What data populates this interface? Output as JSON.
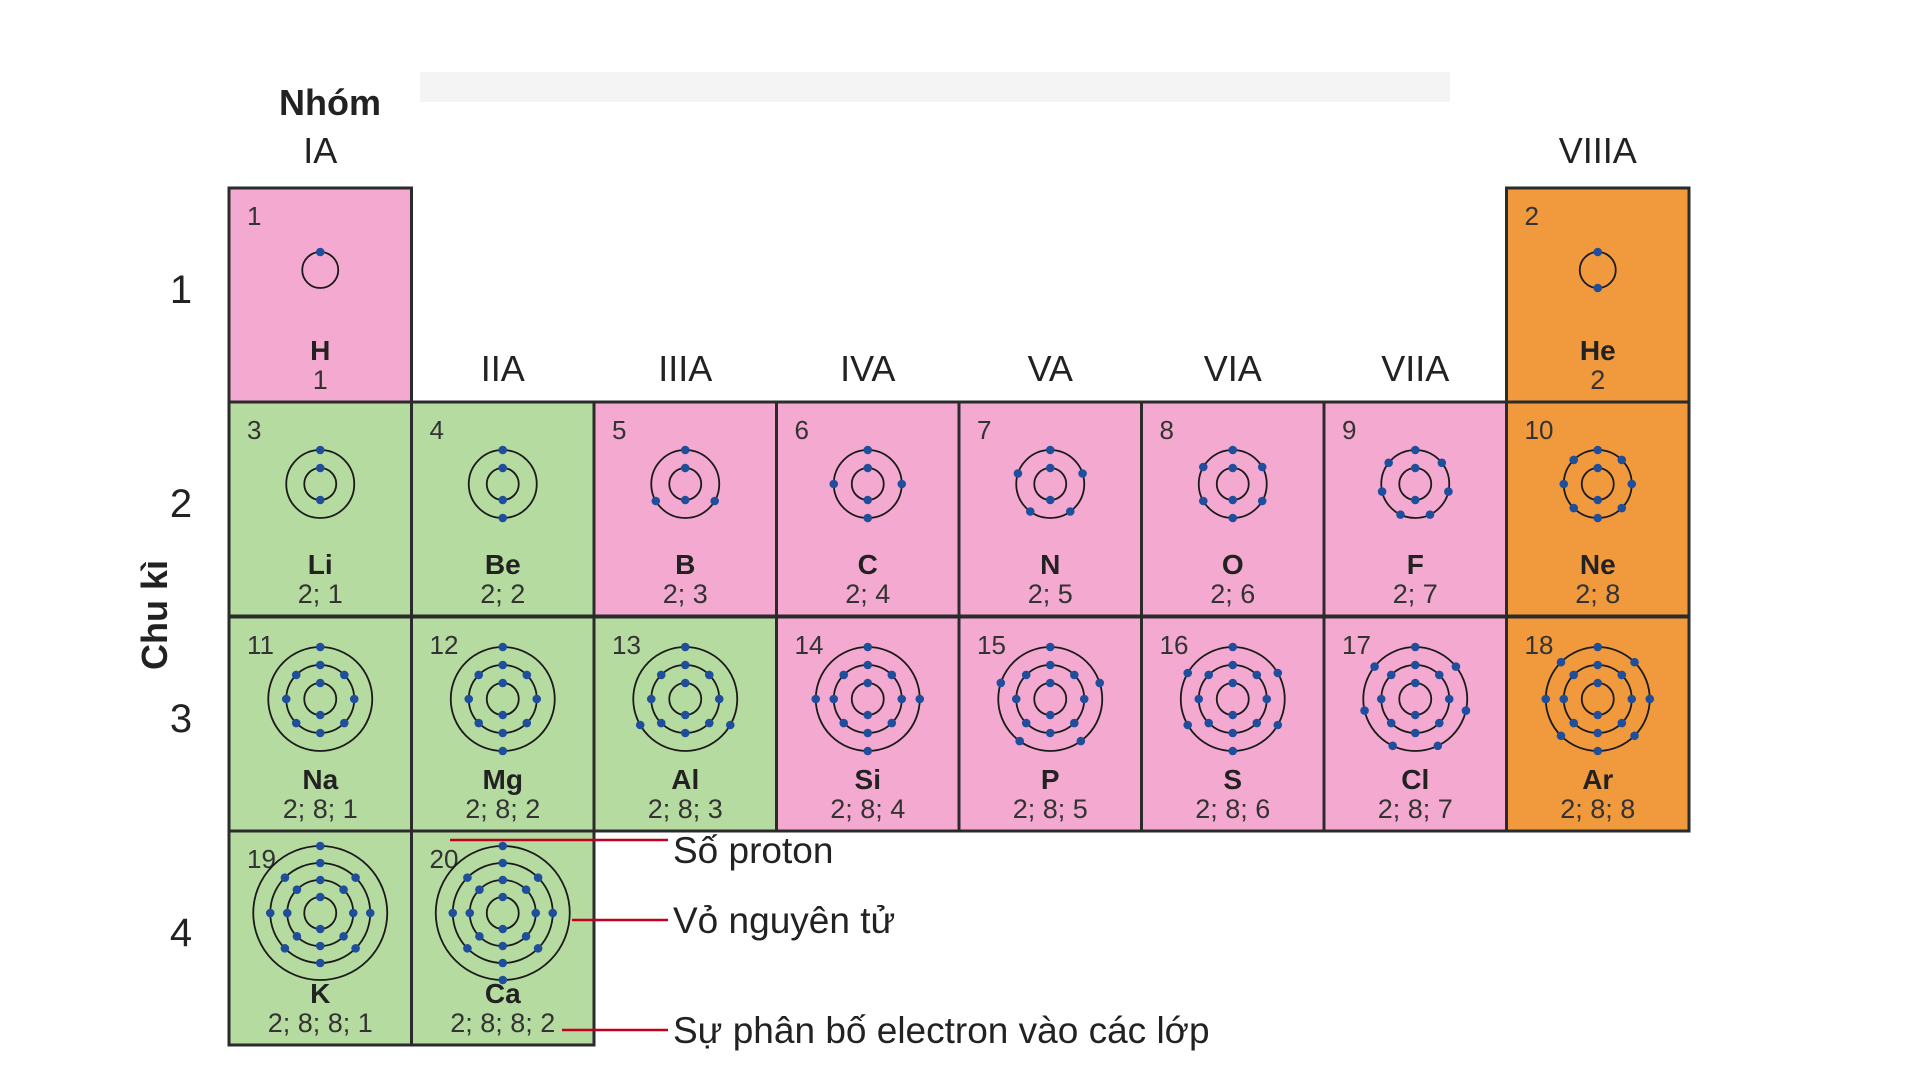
{
  "labels": {
    "group_title": "Nhóm",
    "period_title": "Chu kì"
  },
  "groups": [
    "IA",
    "IIA",
    "IIIA",
    "IVA",
    "VA",
    "VIA",
    "VIIA",
    "VIIIA"
  ],
  "periods": [
    "1",
    "2",
    "3",
    "4"
  ],
  "colors": {
    "pink": "#f4a9d0",
    "green": "#b5dba0",
    "orange": "#f0993d",
    "electron": "#1f4e9c",
    "annotation_line": "#c0001c"
  },
  "elements": [
    {
      "z": "1",
      "symbol": "H",
      "config": "1",
      "period": 1,
      "group": 1,
      "color": "pink",
      "shells": [
        1
      ]
    },
    {
      "z": "2",
      "symbol": "He",
      "config": "2",
      "period": 1,
      "group": 8,
      "color": "orange",
      "shells": [
        2
      ]
    },
    {
      "z": "3",
      "symbol": "Li",
      "config": "2; 1",
      "period": 2,
      "group": 1,
      "color": "green",
      "shells": [
        2,
        1
      ]
    },
    {
      "z": "4",
      "symbol": "Be",
      "config": "2; 2",
      "period": 2,
      "group": 2,
      "color": "green",
      "shells": [
        2,
        2
      ]
    },
    {
      "z": "5",
      "symbol": "B",
      "config": "2; 3",
      "period": 2,
      "group": 3,
      "color": "pink",
      "shells": [
        2,
        3
      ]
    },
    {
      "z": "6",
      "symbol": "C",
      "config": "2; 4",
      "period": 2,
      "group": 4,
      "color": "pink",
      "shells": [
        2,
        4
      ]
    },
    {
      "z": "7",
      "symbol": "N",
      "config": "2; 5",
      "period": 2,
      "group": 5,
      "color": "pink",
      "shells": [
        2,
        5
      ]
    },
    {
      "z": "8",
      "symbol": "O",
      "config": "2; 6",
      "period": 2,
      "group": 6,
      "color": "pink",
      "shells": [
        2,
        6
      ]
    },
    {
      "z": "9",
      "symbol": "F",
      "config": "2; 7",
      "period": 2,
      "group": 7,
      "color": "pink",
      "shells": [
        2,
        7
      ]
    },
    {
      "z": "10",
      "symbol": "Ne",
      "config": "2; 8",
      "period": 2,
      "group": 8,
      "color": "orange",
      "shells": [
        2,
        8
      ]
    },
    {
      "z": "11",
      "symbol": "Na",
      "config": "2; 8; 1",
      "period": 3,
      "group": 1,
      "color": "green",
      "shells": [
        2,
        8,
        1
      ]
    },
    {
      "z": "12",
      "symbol": "Mg",
      "config": "2; 8; 2",
      "period": 3,
      "group": 2,
      "color": "green",
      "shells": [
        2,
        8,
        2
      ]
    },
    {
      "z": "13",
      "symbol": "Al",
      "config": "2; 8; 3",
      "period": 3,
      "group": 3,
      "color": "green",
      "shells": [
        2,
        8,
        3
      ]
    },
    {
      "z": "14",
      "symbol": "Si",
      "config": "2; 8; 4",
      "period": 3,
      "group": 4,
      "color": "pink",
      "shells": [
        2,
        8,
        4
      ]
    },
    {
      "z": "15",
      "symbol": "P",
      "config": "2; 8; 5",
      "period": 3,
      "group": 5,
      "color": "pink",
      "shells": [
        2,
        8,
        5
      ]
    },
    {
      "z": "16",
      "symbol": "S",
      "config": "2; 8; 6",
      "period": 3,
      "group": 6,
      "color": "pink",
      "shells": [
        2,
        8,
        6
      ]
    },
    {
      "z": "17",
      "symbol": "Cl",
      "config": "2; 8; 7",
      "period": 3,
      "group": 7,
      "color": "pink",
      "shells": [
        2,
        8,
        7
      ]
    },
    {
      "z": "18",
      "symbol": "Ar",
      "config": "2; 8; 8",
      "period": 3,
      "group": 8,
      "color": "orange",
      "shells": [
        2,
        8,
        8
      ]
    },
    {
      "z": "19",
      "symbol": "K",
      "config": "2; 8; 8; 1",
      "period": 4,
      "group": 1,
      "color": "green",
      "shells": [
        2,
        8,
        8,
        1
      ]
    },
    {
      "z": "20",
      "symbol": "Ca",
      "config": "2; 8; 8; 2",
      "period": 4,
      "group": 2,
      "color": "green",
      "shells": [
        2,
        8,
        8,
        2
      ]
    }
  ],
  "annotations": {
    "proton": "Số proton",
    "shell": "Vỏ nguyên tử",
    "distribution": "Sự phân bố electron vào các lớp"
  }
}
